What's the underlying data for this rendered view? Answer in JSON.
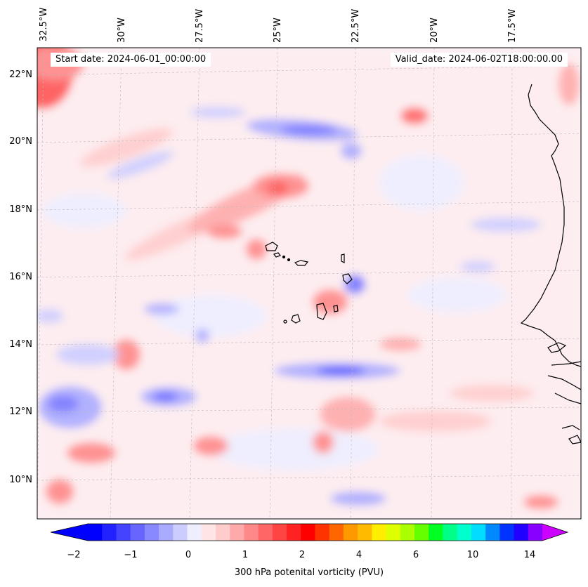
{
  "header": {
    "start_date": "Start date: 2024-06-01_00:00:00",
    "valid_date": "Valid_date: 2024-06-02T18:00:00.00"
  },
  "axes": {
    "lon_labels": [
      "32.5°W",
      "30°W",
      "27.5°W",
      "25°W",
      "22.5°W",
      "20°W",
      "17.5°W"
    ],
    "lat_labels": [
      "22°N",
      "20°N",
      "18°N",
      "16°N",
      "14°N",
      "12°N",
      "10°N"
    ],
    "gridlines": "dashed"
  },
  "colorbar": {
    "label": "300 hPa potenital vorticity (PVU)",
    "tick_labels": [
      "−2",
      "−1",
      "0",
      "1",
      "2",
      "4",
      "6",
      "10",
      "14"
    ],
    "extend": "both",
    "colors": [
      "#0000ff",
      "#2222ff",
      "#4444ff",
      "#6666ff",
      "#8888ff",
      "#aaaaff",
      "#ccccff",
      "#eeeeff",
      "#ffe5e5",
      "#ffcccc",
      "#ffaaaa",
      "#ff8888",
      "#ff6666",
      "#ff4444",
      "#ff2222",
      "#ff0000",
      "#ff3300",
      "#ff6600",
      "#ff9900",
      "#ffbb00",
      "#ffee00",
      "#ddff00",
      "#aaff00",
      "#66ff00",
      "#00ff22",
      "#00ff88",
      "#00ffcc",
      "#00ddff",
      "#0088ff",
      "#0033ff",
      "#2200ff",
      "#8800ff"
    ],
    "under_color": "#0000ff",
    "over_color": "#cc00ff"
  },
  "map": {
    "field": "300 hPa potential vorticity",
    "background_color": "#f4f4ff",
    "coastline_color": "#000000"
  }
}
